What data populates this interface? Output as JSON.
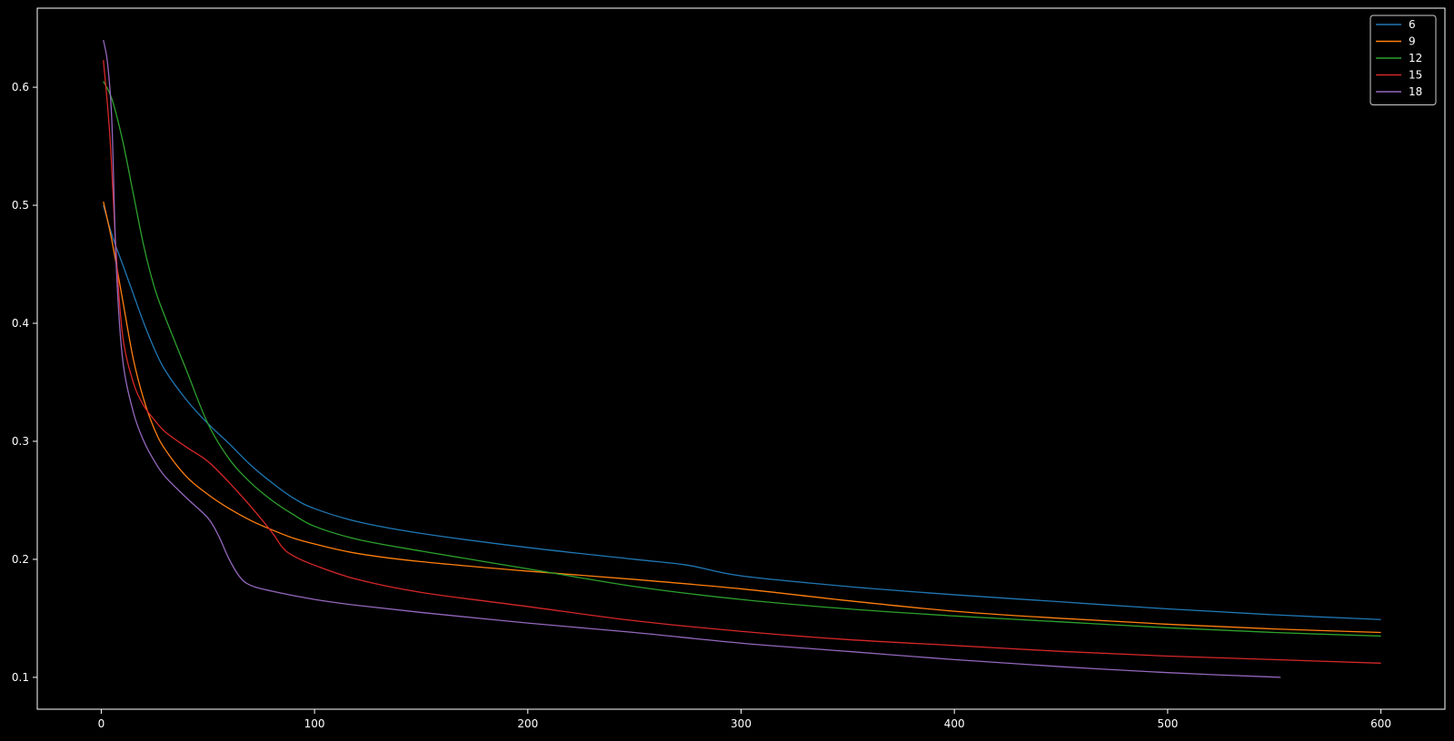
{
  "chart_data": {
    "type": "line",
    "title": "",
    "xlabel": "",
    "ylabel": "",
    "xlim": [
      -30,
      630
    ],
    "ylim": [
      0.073,
      0.667
    ],
    "x_ticks": [
      0,
      100,
      200,
      300,
      400,
      500,
      600
    ],
    "y_ticks": [
      0.1,
      0.2,
      0.3,
      0.4,
      0.5,
      0.6
    ],
    "x_tick_labels": [
      "0",
      "100",
      "200",
      "300",
      "400",
      "500",
      "600"
    ],
    "y_tick_labels": [
      "0.1",
      "0.2",
      "0.3",
      "0.4",
      "0.5",
      "0.6"
    ],
    "grid": false,
    "legend_position": "top-right",
    "series": [
      {
        "name": "6",
        "color": "#1f77b4",
        "x": [
          1,
          5,
          10,
          15,
          20,
          25,
          30,
          40,
          50,
          60,
          70,
          80,
          90,
          100,
          120,
          150,
          200,
          250,
          275,
          300,
          350,
          400,
          450,
          500,
          550,
          600
        ],
        "y": [
          0.5,
          0.475,
          0.45,
          0.425,
          0.4,
          0.378,
          0.36,
          0.335,
          0.315,
          0.298,
          0.28,
          0.265,
          0.252,
          0.243,
          0.232,
          0.222,
          0.21,
          0.2,
          0.195,
          0.186,
          0.177,
          0.17,
          0.164,
          0.158,
          0.153,
          0.149
        ]
      },
      {
        "name": "9",
        "color": "#ff7f0e",
        "x": [
          1,
          5,
          10,
          15,
          20,
          25,
          30,
          40,
          50,
          60,
          70,
          80,
          90,
          100,
          120,
          150,
          200,
          250,
          300,
          350,
          400,
          450,
          500,
          550,
          600
        ],
        "y": [
          0.503,
          0.47,
          0.42,
          0.37,
          0.335,
          0.31,
          0.293,
          0.27,
          0.255,
          0.243,
          0.233,
          0.225,
          0.218,
          0.213,
          0.205,
          0.198,
          0.19,
          0.183,
          0.175,
          0.165,
          0.156,
          0.15,
          0.145,
          0.141,
          0.138
        ]
      },
      {
        "name": "12",
        "color": "#2ca02c",
        "x": [
          1,
          5,
          10,
          15,
          20,
          25,
          30,
          40,
          50,
          60,
          70,
          80,
          90,
          100,
          120,
          150,
          200,
          250,
          300,
          350,
          400,
          450,
          500,
          550,
          600
        ],
        "y": [
          0.605,
          0.59,
          0.555,
          0.51,
          0.465,
          0.43,
          0.405,
          0.36,
          0.315,
          0.285,
          0.265,
          0.25,
          0.238,
          0.228,
          0.217,
          0.207,
          0.192,
          0.177,
          0.166,
          0.158,
          0.152,
          0.147,
          0.142,
          0.138,
          0.135
        ]
      },
      {
        "name": "15",
        "color": "#d62728",
        "x": [
          1,
          4,
          7,
          10,
          15,
          20,
          25,
          30,
          40,
          50,
          60,
          70,
          80,
          85,
          90,
          100,
          120,
          150,
          200,
          250,
          300,
          350,
          400,
          450,
          500,
          550,
          600
        ],
        "y": [
          0.623,
          0.56,
          0.46,
          0.39,
          0.35,
          0.33,
          0.318,
          0.308,
          0.295,
          0.283,
          0.265,
          0.245,
          0.223,
          0.21,
          0.203,
          0.195,
          0.183,
          0.172,
          0.16,
          0.148,
          0.139,
          0.132,
          0.127,
          0.122,
          0.118,
          0.115,
          0.112
        ]
      },
      {
        "name": "18",
        "color": "#9467bd",
        "x": [
          1,
          3,
          5,
          7,
          10,
          15,
          20,
          25,
          30,
          40,
          50,
          55,
          60,
          65,
          70,
          80,
          100,
          120,
          150,
          200,
          250,
          300,
          350,
          400,
          450,
          500,
          553
        ],
        "y": [
          0.64,
          0.62,
          0.57,
          0.45,
          0.37,
          0.325,
          0.3,
          0.283,
          0.27,
          0.252,
          0.235,
          0.22,
          0.2,
          0.185,
          0.178,
          0.173,
          0.166,
          0.161,
          0.155,
          0.146,
          0.138,
          0.129,
          0.122,
          0.115,
          0.109,
          0.104,
          0.1
        ]
      }
    ]
  }
}
